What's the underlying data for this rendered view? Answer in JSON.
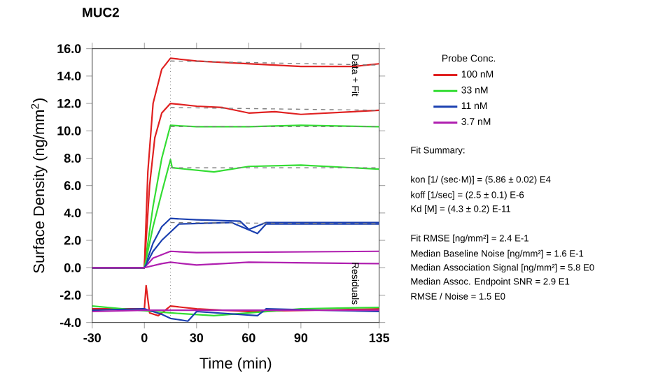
{
  "chart_data": {
    "type": "line",
    "title": "MUC2",
    "xlabel": "Time (min)",
    "ylabel": "Surface Density (ng/mm$^{2}$)",
    "legend_title": "Probe Conc.",
    "legend": "right",
    "marker": "none",
    "grid": false,
    "xlim": [
      -30,
      135
    ],
    "xticks": [
      -30,
      0,
      30,
      60,
      90,
      135
    ],
    "ylim": [
      -4,
      16
    ],
    "yticks": [
      {
        "value": -4,
        "label": "-4.0"
      },
      {
        "value": -2,
        "label": "-2.0"
      },
      {
        "value": 0,
        "label": "0.0"
      },
      {
        "value": 2,
        "label": "2.0"
      },
      {
        "value": 4,
        "label": "4.0"
      },
      {
        "value": 6,
        "label": "6.0"
      },
      {
        "value": 8,
        "label": "8.0"
      },
      {
        "value": 10,
        "label": "10.0"
      },
      {
        "value": 12,
        "label": "12.0"
      },
      {
        "value": 14,
        "label": "14.0"
      },
      {
        "value": 16,
        "label": "16.0"
      }
    ],
    "ref_lines": [
      {
        "axis": "x",
        "value": 15,
        "color": "#404040",
        "line_style": "dotted"
      }
    ],
    "series": [
      {
        "name": "100 nM",
        "color": "#e02020",
        "x": [
          -30,
          0,
          2,
          5,
          10,
          15,
          30,
          60,
          90,
          120,
          135
        ],
        "values": [
          0,
          0,
          7,
          12,
          14.5,
          15.3,
          15.1,
          14.9,
          14.7,
          14.7,
          14.9
        ]
      },
      {
        "name": "33 nM",
        "color": "#33dd33",
        "x": [
          -30,
          0,
          5,
          10,
          15,
          30,
          60,
          90,
          135
        ],
        "values": [
          0,
          0,
          4.5,
          8,
          10.4,
          10.3,
          10.3,
          10.4,
          10.3
        ]
      },
      {
        "name": "11 nM",
        "color": "#1a3fb0",
        "x": [
          -30,
          0,
          5,
          10,
          15,
          30,
          55,
          60,
          70,
          135
        ],
        "values": [
          0,
          0,
          1.8,
          3,
          3.6,
          3.5,
          3.4,
          2.8,
          3.3,
          3.3
        ]
      },
      {
        "name": "3.7 nM",
        "color": "#b020b0",
        "x": [
          -30,
          0,
          5,
          15,
          30,
          135
        ],
        "values": [
          0,
          0,
          0.7,
          1.2,
          1.1,
          1.2
        ]
      },
      {
        "color": "#e02020",
        "x": [
          -30,
          0,
          3,
          6,
          10,
          15,
          30,
          45,
          60,
          75,
          90,
          120,
          135
        ],
        "values": [
          0,
          0,
          6,
          9.5,
          11.3,
          12,
          11.8,
          11.7,
          11.3,
          11.4,
          11.2,
          11.4,
          11.5
        ]
      },
      {
        "color": "#33dd33",
        "x": [
          -30,
          0,
          5,
          10,
          15,
          16,
          40,
          60,
          90,
          135
        ],
        "values": [
          0,
          0,
          3,
          5.5,
          7.9,
          7.3,
          7.0,
          7.4,
          7.5,
          7.2
        ]
      },
      {
        "color": "#1a3fb0",
        "x": [
          -30,
          0,
          5,
          10,
          15,
          20,
          50,
          65,
          70,
          135
        ],
        "values": [
          0,
          0,
          1.2,
          2,
          2.6,
          3.2,
          3.3,
          2.5,
          3.2,
          3.2
        ]
      },
      {
        "color": "#b020b0",
        "x": [
          -30,
          0,
          10,
          15,
          30,
          60,
          135
        ],
        "values": [
          0,
          0,
          0.3,
          0.4,
          0.2,
          0.4,
          0.3
        ]
      },
      {
        "color": "#808080",
        "line_style": "dashed",
        "x": [
          15,
          135
        ],
        "values": [
          15.1,
          14.8
        ]
      },
      {
        "color": "#808080",
        "line_style": "dashed",
        "x": [
          15,
          135
        ],
        "values": [
          11.7,
          11.5
        ]
      },
      {
        "color": "#808080",
        "line_style": "dashed",
        "x": [
          15,
          135
        ],
        "values": [
          10.3,
          10.3
        ]
      },
      {
        "color": "#808080",
        "line_style": "dashed",
        "x": [
          15,
          135
        ],
        "values": [
          7.3,
          7.3
        ]
      },
      {
        "color": "#808080",
        "line_style": "dashed",
        "x": [
          15,
          135
        ],
        "values": [
          3.3,
          3.2
        ]
      },
      {
        "color": "#e02020",
        "x": [
          -30,
          0,
          1,
          3,
          8,
          15,
          30,
          60,
          135
        ],
        "values": [
          -3,
          -3,
          -1.3,
          -3.3,
          -3.5,
          -2.8,
          -3,
          -3.2,
          -3
        ]
      },
      {
        "color": "#33dd33",
        "x": [
          -30,
          0,
          5,
          15,
          40,
          90,
          135
        ],
        "values": [
          -2.8,
          null,
          -3.2,
          -3.3,
          -3.5,
          -3,
          -2.9
        ]
      },
      {
        "color": "#1a3fb0",
        "x": [
          -30,
          0,
          10,
          15,
          25,
          30,
          65,
          70,
          135
        ],
        "values": [
          -3.1,
          -3,
          -3.4,
          -3.7,
          -3.9,
          -3.2,
          -3.5,
          -3,
          -3.2
        ]
      },
      {
        "color": "#b020b0",
        "x": [
          -30,
          0,
          135
        ],
        "values": [
          -3.2,
          -3.1,
          -3.1
        ]
      }
    ],
    "annotations": [
      "Data + Fit",
      "Residuals",
      "Fit Summary:",
      "kon  [1/ (sec·M)]  =  (5.86 ± 0.02) E4",
      "koff  [1/sec]  =  (2.5 ± 0.1) E-6",
      "Kd  [M]  =  (4.3 ± 0.2) E-11",
      "Fit RMSE [ng/mm²]  =  2.4 E-1",
      "Median Baseline Noise [ng/mm²]  =  1.6 E-1",
      "Median Association Signal [ng/mm²]  =  5.8 E0",
      "Median Assoc. Endpoint SNR  =  2.9 E1",
      "RMSE / Noise  =  1.5 E0"
    ]
  }
}
